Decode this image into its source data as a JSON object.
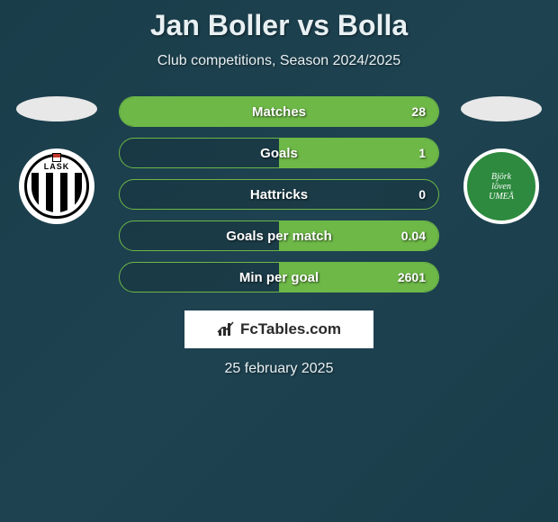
{
  "header": {
    "title": "Jan Boller vs Bolla",
    "subtitle": "Club competitions, Season 2024/2025"
  },
  "players": {
    "left": {
      "name": "Jan Boller",
      "team": "LASK",
      "team_label": "LASK"
    },
    "right": {
      "name": "Bolla",
      "team": "Björklöven Umeå",
      "team_label": "Björk\nlöven\nUmeå"
    }
  },
  "stats": [
    {
      "label": "Matches",
      "right_value": "28",
      "fill_side": "full",
      "fill_pct": 100
    },
    {
      "label": "Goals",
      "right_value": "1",
      "fill_side": "right",
      "fill_pct": 50
    },
    {
      "label": "Hattricks",
      "right_value": "0",
      "fill_side": "none",
      "fill_pct": 0
    },
    {
      "label": "Goals per match",
      "right_value": "0.04",
      "fill_side": "right",
      "fill_pct": 50
    },
    {
      "label": "Min per goal",
      "right_value": "2601",
      "fill_side": "right",
      "fill_pct": 50
    }
  ],
  "branding": {
    "name": "FcTables.com"
  },
  "date": "25 february 2025",
  "colors": {
    "accent_green": "#6db847",
    "bg_start": "#1a3d4a",
    "bg_end": "#1e4250",
    "text": "#e8f0f3"
  }
}
